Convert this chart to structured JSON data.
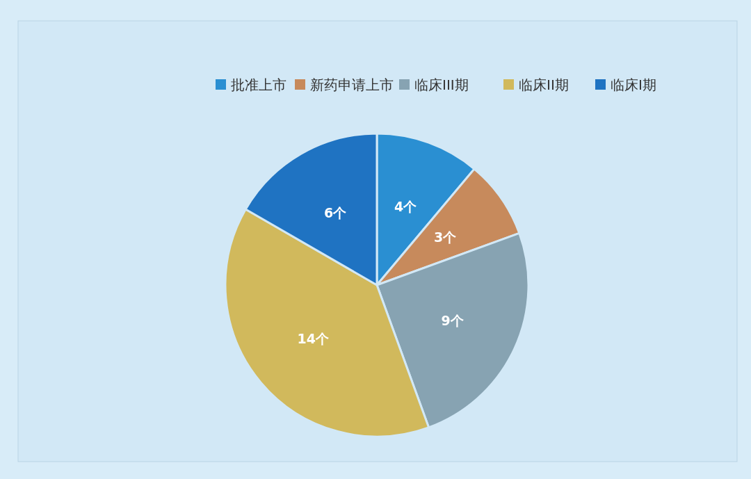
{
  "chart_data": {
    "type": "pie",
    "categories": [
      "批准上市",
      "新药申请上市",
      "临床III期",
      "临床II期",
      "临床I期"
    ],
    "values": [
      4,
      3,
      9,
      14,
      6
    ],
    "colors": [
      "#2a8fd2",
      "#c78a5c",
      "#87a3b2",
      "#d1b95c",
      "#1f73c2"
    ],
    "value_labels": [
      "4个",
      "3个",
      "9个",
      "14个",
      "6个"
    ],
    "legend": "top"
  }
}
